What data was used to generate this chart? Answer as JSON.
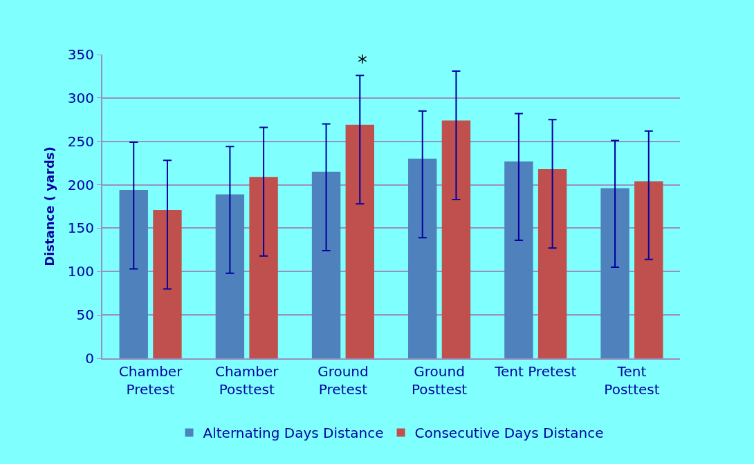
{
  "chart_data": {
    "type": "bar",
    "ylabel": "Distance ( yards)",
    "categories": [
      "Chamber\nPretest",
      "Chamber\nPosttest",
      "Ground\nPretest",
      "Ground\nPosttest",
      "Tent Pretest",
      "Tent\nPosttest"
    ],
    "series": [
      {
        "name": "Alternating Days Distance",
        "color": "#4f81bd",
        "values": [
          194,
          189,
          215,
          230,
          227,
          196
        ],
        "errors": [
          [
            103,
            249
          ],
          [
            98,
            244
          ],
          [
            124,
            270
          ],
          [
            139,
            285
          ],
          [
            136,
            282
          ],
          [
            105,
            251
          ]
        ]
      },
      {
        "name": "Consecutive Days Distance",
        "color": "#c0504d",
        "values": [
          171,
          209,
          269,
          274,
          218,
          204
        ],
        "errors": [
          [
            80,
            228
          ],
          [
            118,
            266
          ],
          [
            178,
            326
          ],
          [
            183,
            331
          ],
          [
            127,
            275
          ],
          [
            114,
            262
          ]
        ]
      }
    ],
    "annotations": [
      {
        "text": "*",
        "x": "Ground\nPretest",
        "y": 269
      }
    ],
    "ylim": [
      0,
      350
    ],
    "yticks": [
      0,
      50,
      100,
      150,
      200,
      250,
      300,
      350
    ],
    "grid": "y",
    "legend": "bottom"
  }
}
